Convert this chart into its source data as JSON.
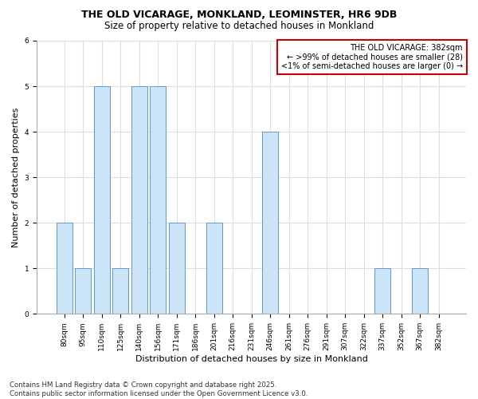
{
  "title_line1": "THE OLD VICARAGE, MONKLAND, LEOMINSTER, HR6 9DB",
  "title_line2": "Size of property relative to detached houses in Monkland",
  "xlabel": "Distribution of detached houses by size in Monkland",
  "ylabel": "Number of detached properties",
  "categories": [
    "80sqm",
    "95sqm",
    "110sqm",
    "125sqm",
    "140sqm",
    "156sqm",
    "171sqm",
    "186sqm",
    "201sqm",
    "216sqm",
    "231sqm",
    "246sqm",
    "261sqm",
    "276sqm",
    "291sqm",
    "307sqm",
    "322sqm",
    "337sqm",
    "352sqm",
    "367sqm",
    "382sqm"
  ],
  "values": [
    2,
    1,
    5,
    1,
    5,
    5,
    2,
    0,
    2,
    0,
    0,
    4,
    0,
    0,
    0,
    0,
    0,
    1,
    0,
    1,
    0
  ],
  "bar_color": "#cce4f7",
  "bar_edge_color": "#5b9bd5",
  "annotation_title": "THE OLD VICARAGE: 382sqm",
  "annotation_line1": "← >99% of detached houses are smaller (28)",
  "annotation_line2": "<1% of semi-detached houses are larger (0) →",
  "annotation_box_color": "#ffffff",
  "annotation_box_edge": "#cc0000",
  "ylim": [
    0,
    6
  ],
  "yticks": [
    0,
    1,
    2,
    3,
    4,
    5,
    6
  ],
  "footer_line1": "Contains HM Land Registry data © Crown copyright and database right 2025.",
  "footer_line2": "Contains public sector information licensed under the Open Government Licence v3.0.",
  "background_color": "#ffffff",
  "plot_bg_color": "#ffffff",
  "grid_color": "#dddddd"
}
